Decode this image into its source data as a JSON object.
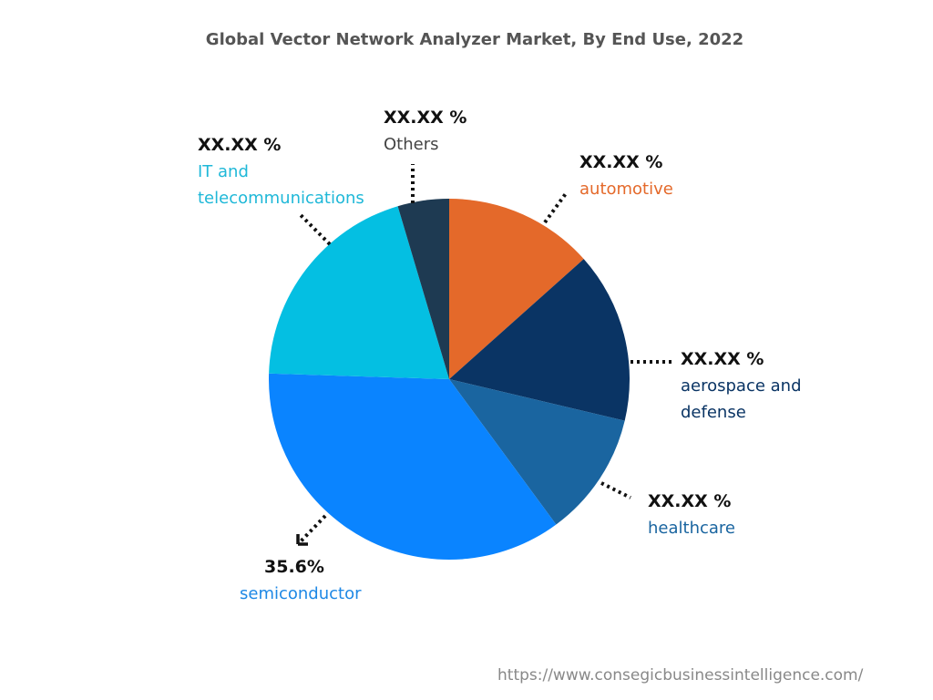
{
  "chart_data": {
    "type": "pie",
    "title": "Global Vector Network Analyzer Market, By End Use, 2022",
    "start_angle": "12 o'clock",
    "direction": "clockwise",
    "slices": [
      {
        "category": "automotive",
        "value": 13.4,
        "label": "XX.XX %",
        "color": "#E4692A"
      },
      {
        "category": "aerospace and defense",
        "value": 15.3,
        "label": "XX.XX %",
        "color": "#0A3464"
      },
      {
        "category": "healthcare",
        "value": 11.2,
        "label": "XX.XX %",
        "color": "#1A65A0"
      },
      {
        "category": "semiconductor",
        "value": 35.6,
        "label": "35.6%",
        "color": "#0A84FF"
      },
      {
        "category": "IT and telecommunications",
        "value": 19.9,
        "label": "XX.XX %",
        "color": "#04BFE2"
      },
      {
        "category": "Others",
        "value": 4.6,
        "label": "XX.XX %",
        "color": "#1E3A52"
      }
    ],
    "legend": "none (labels outside slices with dotted leader lines)"
  },
  "source": "https://www.consegicbusinessintelligence.com/"
}
